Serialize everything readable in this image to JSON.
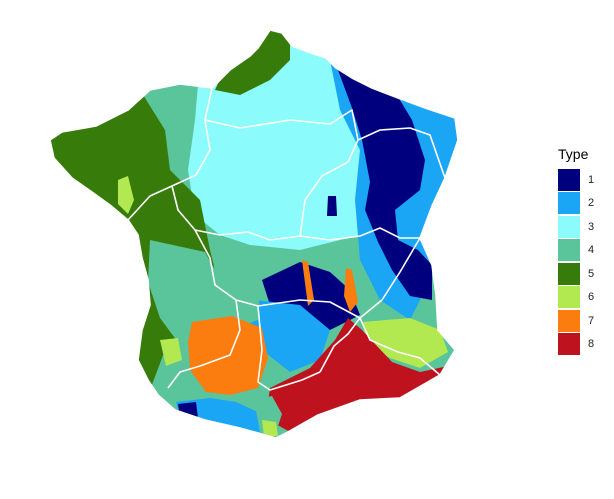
{
  "legend": {
    "title": "Type",
    "items": [
      {
        "label": "1",
        "color": "#00007f"
      },
      {
        "label": "2",
        "color": "#1aa5f5"
      },
      {
        "label": "3",
        "color": "#8cfbfb"
      },
      {
        "label": "4",
        "color": "#5ac49b"
      },
      {
        "label": "5",
        "color": "#377b0b"
      },
      {
        "label": "6",
        "color": "#b2e850"
      },
      {
        "label": "7",
        "color": "#fb7c0f"
      },
      {
        "label": "8",
        "color": "#be131e"
      }
    ]
  }
}
